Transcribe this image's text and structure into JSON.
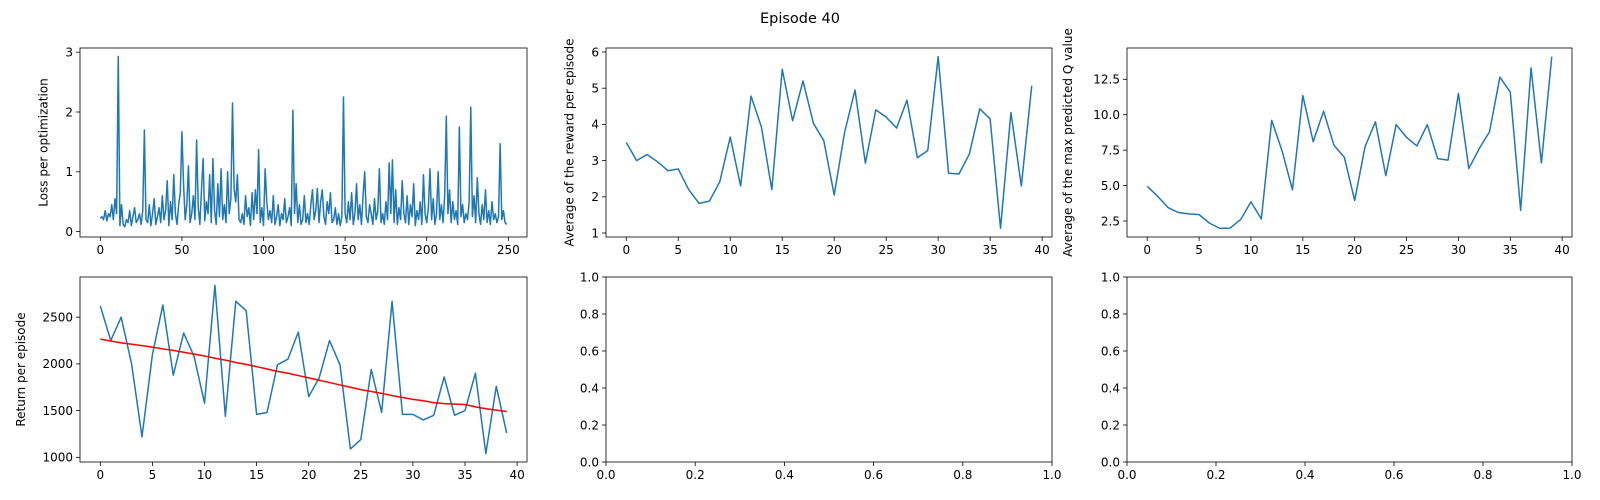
{
  "title": "Episode 40",
  "chart_data": [
    {
      "type": "line",
      "ylabel": "Loss per optimization",
      "x": [
        0,
        1,
        2,
        3,
        4,
        5,
        6,
        7,
        8,
        9,
        10,
        11,
        12,
        13,
        14,
        15,
        16,
        17,
        18,
        19,
        20,
        21,
        22,
        23,
        24,
        25,
        26,
        27,
        28,
        29,
        30,
        31,
        32,
        33,
        34,
        35,
        36,
        37,
        38,
        39,
        40,
        41,
        42,
        43,
        44,
        45,
        46,
        47,
        48,
        49,
        50,
        51,
        52,
        53,
        54,
        55,
        56,
        57,
        58,
        59,
        60,
        61,
        62,
        63,
        64,
        65,
        66,
        67,
        68,
        69,
        70,
        71,
        72,
        73,
        74,
        75,
        76,
        77,
        78,
        79,
        80,
        81,
        82,
        83,
        84,
        85,
        86,
        87,
        88,
        89,
        90,
        91,
        92,
        93,
        94,
        95,
        96,
        97,
        98,
        99,
        100,
        101,
        102,
        103,
        104,
        105,
        106,
        107,
        108,
        109,
        110,
        111,
        112,
        113,
        114,
        115,
        116,
        117,
        118,
        119,
        120,
        121,
        122,
        123,
        124,
        125,
        126,
        127,
        128,
        129,
        130,
        131,
        132,
        133,
        134,
        135,
        136,
        137,
        138,
        139,
        140,
        141,
        142,
        143,
        144,
        145,
        146,
        147,
        148,
        149,
        150,
        151,
        152,
        153,
        154,
        155,
        156,
        157,
        158,
        159,
        160,
        161,
        162,
        163,
        164,
        165,
        166,
        167,
        168,
        169,
        170,
        171,
        172,
        173,
        174,
        175,
        176,
        177,
        178,
        179,
        180,
        181,
        182,
        183,
        184,
        185,
        186,
        187,
        188,
        189,
        190,
        191,
        192,
        193,
        194,
        195,
        196,
        197,
        198,
        199,
        200,
        201,
        202,
        203,
        204,
        205,
        206,
        207,
        208,
        209,
        210,
        211,
        212,
        213,
        214,
        215,
        216,
        217,
        218,
        219,
        220,
        221,
        222,
        223,
        224,
        225,
        226,
        227,
        228,
        229,
        230,
        231,
        232,
        233,
        234,
        235,
        236,
        237,
        238,
        239,
        240,
        241,
        242,
        243,
        244,
        245,
        246,
        247,
        248,
        249
      ],
      "series": [
        {
          "color": "#1f77b4",
          "values": [
            0.22,
            0.25,
            0.2,
            0.35,
            0.18,
            0.3,
            0.25,
            0.45,
            0.2,
            0.55,
            0.3,
            2.93,
            0.1,
            0.45,
            0.12,
            0.08,
            0.2,
            0.15,
            0.35,
            0.1,
            0.25,
            0.4,
            0.15,
            0.2,
            0.3,
            0.12,
            0.35,
            1.7,
            0.2,
            0.15,
            0.45,
            0.1,
            0.3,
            0.55,
            0.12,
            0.25,
            0.4,
            0.15,
            0.6,
            0.2,
            0.35,
            0.85,
            0.1,
            0.5,
            0.2,
            0.95,
            0.3,
            0.12,
            0.45,
            0.65,
            1.67,
            0.8,
            0.2,
            0.45,
            1.1,
            0.15,
            0.3,
            0.6,
            0.2,
            1.53,
            0.4,
            0.12,
            0.7,
            1.22,
            0.18,
            0.5,
            0.3,
            0.95,
            0.15,
            1.22,
            0.35,
            0.12,
            0.8,
            0.25,
            1.05,
            0.2,
            0.45,
            0.15,
            1.0,
            0.3,
            0.55,
            2.15,
            0.7,
            0.5,
            0.95,
            0.2,
            0.15,
            0.3,
            0.12,
            0.6,
            0.25,
            0.4,
            0.1,
            0.65,
            0.2,
            0.7,
            0.3,
            1.37,
            0.15,
            0.4,
            0.1,
            1.05,
            0.5,
            0.2,
            0.35,
            0.15,
            0.6,
            0.12,
            0.25,
            0.45,
            0.1,
            0.3,
            0.2,
            0.55,
            0.15,
            0.25,
            0.4,
            0.1,
            2.03,
            0.3,
            0.8,
            0.15,
            0.45,
            0.12,
            0.2,
            0.6,
            0.15,
            0.3,
            0.12,
            0.45,
            0.7,
            0.2,
            0.35,
            0.72,
            0.15,
            0.5,
            0.7,
            0.25,
            0.12,
            0.5,
            0.3,
            0.65,
            0.15,
            0.2,
            0.4,
            0.12,
            0.3,
            0.1,
            0.25,
            2.25,
            0.3,
            0.15,
            0.5,
            0.2,
            0.65,
            0.12,
            0.3,
            0.8,
            0.2,
            0.45,
            0.12,
            0.6,
            1.0,
            0.25,
            0.15,
            0.45,
            0.3,
            0.12,
            0.55,
            0.2,
            0.35,
            1.05,
            0.15,
            0.3,
            0.12,
            0.5,
            0.2,
            1.15,
            0.3,
            1.2,
            0.15,
            0.7,
            0.12,
            0.4,
            0.2,
            0.85,
            0.3,
            0.15,
            0.6,
            0.12,
            0.45,
            0.25,
            0.8,
            0.1,
            0.35,
            0.2,
            0.5,
            0.12,
            0.95,
            0.3,
            0.15,
            0.4,
            1.05,
            0.2,
            0.55,
            0.12,
            0.3,
            1.0,
            0.2,
            0.45,
            0.15,
            0.6,
            1.93,
            0.3,
            0.7,
            0.15,
            0.5,
            0.2,
            0.35,
            0.12,
            1.75,
            0.25,
            0.45,
            0.15,
            0.3,
            0.2,
            0.5,
            2.08,
            0.25,
            0.6,
            0.15,
            0.9,
            0.3,
            0.12,
            0.45,
            0.2,
            0.7,
            0.15,
            0.35,
            0.12,
            0.5,
            0.2,
            0.3,
            0.15,
            0.25,
            1.47,
            0.2,
            0.35,
            0.15,
            0.12
          ]
        }
      ],
      "xlim": [
        -12.45,
        261.45
      ],
      "xticks": [
        0,
        50,
        100,
        150,
        200,
        250
      ],
      "ylim": [
        -0.09,
        3.07
      ],
      "yticks": [
        0,
        1,
        2,
        3
      ]
    },
    {
      "type": "line",
      "ylabel": "Average of the reward per episode",
      "x": [
        0,
        1,
        2,
        3,
        4,
        5,
        6,
        7,
        8,
        9,
        10,
        11,
        12,
        13,
        14,
        15,
        16,
        17,
        18,
        19,
        20,
        21,
        22,
        23,
        24,
        25,
        26,
        27,
        28,
        29,
        30,
        31,
        32,
        33,
        34,
        35,
        36,
        37,
        38,
        39
      ],
      "series": [
        {
          "color": "#1f77b4",
          "values": [
            3.5,
            3.0,
            3.17,
            2.97,
            2.72,
            2.77,
            2.2,
            1.82,
            1.88,
            2.42,
            3.65,
            2.3,
            4.78,
            3.93,
            2.2,
            5.52,
            4.1,
            5.2,
            4.03,
            3.55,
            2.05,
            3.78,
            4.95,
            2.93,
            4.4,
            4.2,
            3.9,
            4.67,
            3.08,
            3.28,
            5.87,
            2.65,
            2.63,
            3.18,
            4.43,
            4.15,
            1.13,
            4.33,
            2.3,
            5.07
          ]
        }
      ],
      "xlim": [
        -1.95,
        40.95
      ],
      "xticks": [
        0,
        5,
        10,
        15,
        20,
        25,
        30,
        35,
        40
      ],
      "ylim": [
        0.89,
        6.11
      ],
      "yticks": [
        1,
        2,
        3,
        4,
        5,
        6
      ]
    },
    {
      "type": "line",
      "ylabel": "Average of the max predicted Q value",
      "x": [
        0,
        1,
        2,
        3,
        4,
        5,
        6,
        7,
        8,
        9,
        10,
        11,
        12,
        13,
        14,
        15,
        16,
        17,
        18,
        19,
        20,
        21,
        22,
        23,
        24,
        25,
        26,
        27,
        28,
        29,
        30,
        31,
        32,
        33,
        34,
        35,
        36,
        37,
        38,
        39
      ],
      "series": [
        {
          "color": "#1f77b4",
          "values": [
            4.95,
            4.25,
            3.45,
            3.1,
            3.0,
            2.95,
            2.35,
            1.98,
            2.0,
            2.6,
            3.85,
            2.65,
            9.6,
            7.45,
            4.7,
            11.35,
            8.1,
            10.25,
            7.85,
            7.0,
            3.95,
            7.75,
            9.5,
            5.7,
            9.3,
            8.4,
            7.8,
            9.3,
            6.9,
            6.8,
            11.5,
            6.2,
            7.6,
            8.8,
            12.65,
            11.6,
            3.25,
            13.3,
            6.6,
            14.1
          ]
        }
      ],
      "xlim": [
        -1.95,
        40.95
      ],
      "xticks": [
        0,
        5,
        10,
        15,
        20,
        25,
        30,
        35,
        40
      ],
      "ylim": [
        1.37,
        14.71
      ],
      "yticks": [
        2.5,
        {
          "value": 5,
          "label": "5.0"
        },
        7.5,
        {
          "value": 10,
          "label": "10.0"
        },
        12.5
      ]
    },
    {
      "type": "line",
      "ylabel": "Return per episode",
      "x": [
        0,
        1,
        2,
        3,
        4,
        5,
        6,
        7,
        8,
        9,
        10,
        11,
        12,
        13,
        14,
        15,
        16,
        17,
        18,
        19,
        20,
        21,
        22,
        23,
        24,
        25,
        26,
        27,
        28,
        29,
        30,
        31,
        32,
        33,
        34,
        35,
        36,
        37,
        38,
        39
      ],
      "series": [
        {
          "color": "#1f77b4",
          "values": [
            2620,
            2250,
            2500,
            2000,
            1220,
            2100,
            2630,
            1880,
            2330,
            2080,
            1580,
            2840,
            1440,
            2670,
            2570,
            1460,
            1480,
            1990,
            2050,
            2340,
            1650,
            1850,
            2250,
            1990,
            1090,
            1190,
            1940,
            1480,
            2670,
            1460,
            1460,
            1400,
            1450,
            1860,
            1450,
            1500,
            1900,
            1040,
            1760,
            1260
          ]
        },
        {
          "color": "#ff0000",
          "values": [
            2265,
            2245,
            2225,
            2210,
            2195,
            2180,
            2160,
            2145,
            2125,
            2105,
            2085,
            2060,
            2040,
            2015,
            1995,
            1970,
            1945,
            1920,
            1900,
            1875,
            1850,
            1825,
            1800,
            1775,
            1750,
            1725,
            1705,
            1685,
            1660,
            1640,
            1620,
            1605,
            1585,
            1575,
            1570,
            1565,
            1540,
            1520,
            1505,
            1490
          ]
        }
      ],
      "xlim": [
        -1.95,
        40.95
      ],
      "xticks": [
        0,
        5,
        10,
        15,
        20,
        25,
        30,
        35,
        40
      ],
      "ylim": [
        950,
        2930
      ],
      "yticks": [
        1000,
        1500,
        2000,
        2500
      ]
    },
    {
      "type": "line",
      "series": [],
      "xlim": [
        0,
        1
      ],
      "xticks": [
        {
          "value": 0,
          "label": "0.0"
        },
        0.2,
        0.4,
        0.6,
        0.8,
        {
          "value": 1,
          "label": "1.0"
        }
      ],
      "ylim": [
        0,
        1
      ],
      "yticks": [
        {
          "value": 0,
          "label": "0.0"
        },
        0.2,
        0.4,
        0.6,
        0.8,
        {
          "value": 1,
          "label": "1.0"
        }
      ]
    },
    {
      "type": "line",
      "series": [],
      "xlim": [
        0,
        1
      ],
      "xticks": [
        {
          "value": 0,
          "label": "0.0"
        },
        0.2,
        0.4,
        0.6,
        0.8,
        {
          "value": 1,
          "label": "1.0"
        }
      ],
      "ylim": [
        0,
        1
      ],
      "yticks": [
        {
          "value": 0,
          "label": "0.0"
        },
        0.2,
        0.4,
        0.6,
        0.8,
        {
          "value": 1,
          "label": "1.0"
        }
      ]
    }
  ]
}
